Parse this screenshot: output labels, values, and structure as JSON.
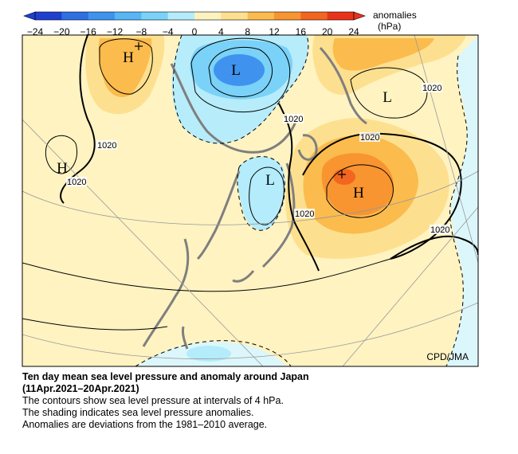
{
  "colorbar": {
    "title_line1": "anomalies",
    "title_line2": "(hPa)",
    "ticks": [
      "−24",
      "−20",
      "−16",
      "−12",
      "−8",
      "−4",
      "0",
      "4",
      "8",
      "12",
      "16",
      "20",
      "24"
    ],
    "colors": [
      "#1f3fcf",
      "#2f6fe4",
      "#3f93ef",
      "#57b6f5",
      "#7ad2f8",
      "#b4ecfb",
      "#dcf7fb",
      "#fdf3c0",
      "#fde08f",
      "#fbbb4d",
      "#f89530",
      "#f2661f",
      "#e8331a"
    ]
  },
  "map": {
    "credit": "CPD/JMA",
    "pressure_labels": [
      "1020",
      "1020",
      "1020",
      "1020",
      "1020",
      "1020",
      "1020"
    ],
    "centers": [
      "H",
      "L",
      "L",
      "H",
      "L",
      "H"
    ],
    "colors": {
      "land": "#7f7f7f",
      "neutral_fill": "#fff3c2",
      "warm_fill": "#fcb94a",
      "strong_warm": "#f3702a",
      "cool_fill": "#b7ecfb",
      "strong_cool": "#5bb8f4"
    }
  },
  "caption": {
    "title_line1": "Ten day mean sea level pressure and anomaly around Japan",
    "title_line2": "(11Apr.2021–20Apr.2021)",
    "line1": "The contours show sea level pressure at intervals of 4 hPa.",
    "line2": "The shading indicates sea level pressure anomalies.",
    "line3": "Anomalies are deviations from the 1981–2010 average."
  }
}
